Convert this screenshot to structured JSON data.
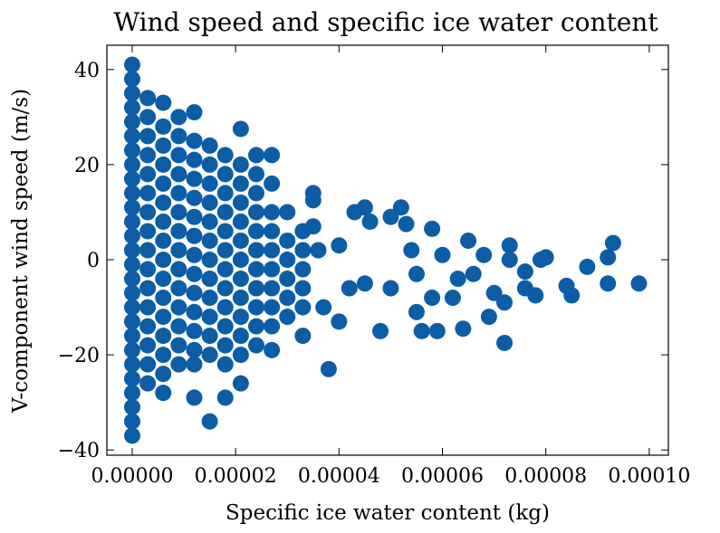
{
  "chart_data": {
    "type": "scatter",
    "title": "Wind speed and specific ice water content",
    "x_label": "Specific ice water content (kg)",
    "y_label": "V-component wind speed (m/s)",
    "xlim": [
      -4.9e-06,
      0.0001037
    ],
    "ylim": [
      -41.1,
      45.1
    ],
    "xticks": [
      {
        "value": 0,
        "label": "0.00000"
      },
      {
        "value": 2e-05,
        "label": "0.00002"
      },
      {
        "value": 4e-05,
        "label": "0.00004"
      },
      {
        "value": 6e-05,
        "label": "0.00006"
      },
      {
        "value": 8e-05,
        "label": "0.00008"
      },
      {
        "value": 0.0001,
        "label": "0.00010"
      }
    ],
    "yticks": [
      {
        "value": -40,
        "label": "−40"
      },
      {
        "value": -20,
        "label": "−20"
      },
      0,
      20,
      40
    ],
    "color": "#0C5DA5",
    "x": [
      0,
      0,
      0,
      0,
      0,
      0,
      0,
      0,
      0,
      0,
      0,
      0,
      0,
      0,
      0,
      0,
      0,
      0,
      0,
      0,
      0,
      0,
      0,
      0,
      0,
      0,
      0,
      3e-06,
      3e-06,
      3e-06,
      3e-06,
      3e-06,
      3e-06,
      3e-06,
      3e-06,
      3e-06,
      3e-06,
      3e-06,
      3e-06,
      3e-06,
      3e-06,
      3e-06,
      3e-06,
      6e-06,
      6e-06,
      6e-06,
      6e-06,
      6e-06,
      6e-06,
      6e-06,
      6e-06,
      6e-06,
      6e-06,
      6e-06,
      6e-06,
      6e-06,
      6e-06,
      6e-06,
      6e-06,
      9e-06,
      9e-06,
      9e-06,
      9e-06,
      9e-06,
      9e-06,
      9e-06,
      9e-06,
      9e-06,
      9e-06,
      9e-06,
      9e-06,
      9e-06,
      9e-06,
      1.2e-05,
      1.2e-05,
      1.2e-05,
      1.2e-05,
      1.2e-05,
      1.2e-05,
      1.2e-05,
      1.2e-05,
      1.2e-05,
      1.2e-05,
      1.2e-05,
      1.2e-05,
      1.2e-05,
      1.2e-05,
      1.2e-05,
      1.5e-05,
      1.5e-05,
      1.5e-05,
      1.5e-05,
      1.5e-05,
      1.5e-05,
      1.5e-05,
      1.5e-05,
      1.5e-05,
      1.5e-05,
      1.5e-05,
      1.5e-05,
      1.5e-05,
      1.8e-05,
      1.8e-05,
      1.8e-05,
      1.8e-05,
      1.8e-05,
      1.8e-05,
      1.8e-05,
      1.8e-05,
      1.8e-05,
      1.8e-05,
      1.8e-05,
      1.8e-05,
      1.8e-05,
      2.1e-05,
      2.1e-05,
      2.1e-05,
      2.1e-05,
      2.1e-05,
      2.1e-05,
      2.1e-05,
      2.1e-05,
      2.1e-05,
      2.1e-05,
      2.1e-05,
      2.1e-05,
      2.1e-05,
      2.4e-05,
      2.4e-05,
      2.4e-05,
      2.4e-05,
      2.4e-05,
      2.4e-05,
      2.4e-05,
      2.4e-05,
      2.4e-05,
      2.4e-05,
      2.4e-05,
      2.7e-05,
      2.7e-05,
      2.7e-05,
      2.7e-05,
      2.7e-05,
      2.7e-05,
      2.7e-05,
      2.7e-05,
      2.7e-05,
      2.7e-05,
      3e-05,
      3e-05,
      3e-05,
      3e-05,
      3e-05,
      3e-05,
      3.3e-05,
      3.3e-05,
      3.3e-05,
      3.3e-05,
      3.3e-05,
      3.3e-05,
      3.5e-05,
      3.5e-05,
      3.5e-05,
      3.8e-05,
      3.6e-05,
      4e-05,
      4.3e-05,
      4.5e-05,
      4.6e-05,
      4.5e-05,
      4.8e-05,
      5e-05,
      5.2e-05,
      5.3e-05,
      5.4e-05,
      5.5e-05,
      5.5e-05,
      5.6e-05,
      5.8e-05,
      5.8e-05,
      5.9e-05,
      6e-05,
      6.2e-05,
      6.4e-05,
      6.5e-05,
      6.6e-05,
      6.8e-05,
      6.9e-05,
      7e-05,
      7.2e-05,
      7.3e-05,
      7.3e-05,
      7.2e-05,
      7.6e-05,
      7.6e-05,
      7.8e-05,
      7.9e-05,
      8e-05,
      8.4e-05,
      8.5e-05,
      8.8e-05,
      9.2e-05,
      9.2e-05,
      9.3e-05,
      9.8e-05,
      4.2e-05,
      4e-05,
      3.7e-05,
      6.3e-05,
      5e-05
    ],
    "values": [
      41,
      38,
      35,
      32,
      29,
      26,
      23,
      20,
      17,
      14,
      11,
      8,
      5,
      2,
      -1,
      -4,
      -7,
      -10,
      -13,
      -16,
      -19,
      -22,
      -25,
      -28,
      -31,
      -34,
      -37,
      34,
      30,
      26,
      22,
      18,
      14,
      10,
      6,
      2,
      -2,
      -6,
      -10,
      -14,
      -18,
      -22,
      -26,
      33,
      28,
      24,
      20,
      16,
      12,
      8,
      4,
      0,
      -4,
      -8,
      -12,
      -16,
      -20,
      -24,
      -28,
      30,
      26,
      22,
      18,
      14,
      10,
      6,
      2,
      -2,
      -6,
      -10,
      -14,
      -18,
      -22,
      31,
      25,
      21,
      17,
      13,
      9,
      5,
      1,
      -3,
      -7,
      -11,
      -15,
      -19,
      -22,
      -29,
      24,
      20,
      16,
      12,
      8,
      4,
      0,
      -4,
      -8,
      -12,
      -16,
      -20,
      -34,
      22,
      18,
      14,
      10,
      6,
      2,
      -2,
      -6,
      -10,
      -14,
      -18,
      -22,
      -29,
      27.5,
      20,
      16,
      12,
      8,
      4,
      0,
      -4,
      -8,
      -12,
      -16,
      -20,
      -26,
      22,
      18,
      14,
      10,
      6,
      2,
      -2,
      -6,
      -10,
      -14,
      -18,
      22,
      16,
      10,
      6,
      2,
      -2,
      -6,
      -10,
      -14,
      -19,
      10,
      4,
      0,
      -4,
      -8,
      -12,
      6,
      2,
      -2,
      -6,
      -10,
      -16,
      14,
      12.5,
      7,
      -23,
      2,
      3,
      10,
      11,
      8,
      -5,
      -15,
      9,
      11,
      7.5,
      2,
      -3,
      -11,
      -15,
      6.5,
      -8,
      -15,
      1,
      -8,
      -14.5,
      4,
      -3,
      1,
      -12,
      -7,
      -17.5,
      0,
      3,
      -9,
      -2.5,
      -6,
      -7.5,
      0,
      0.5,
      -5.5,
      -7.5,
      -1.5,
      0.5,
      -5,
      3.5,
      -5,
      -6,
      -13,
      -10,
      -4,
      -6
    ]
  }
}
